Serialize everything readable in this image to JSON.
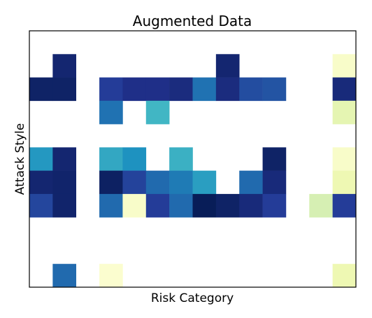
{
  "chart_data": {
    "type": "heatmap",
    "title": "Augmented Data",
    "xlabel": "Risk Category",
    "ylabel": "Attack Style",
    "colormap": "YlGnBu",
    "vlim": [
      0,
      1
    ],
    "x": [
      null,
      null,
      null,
      null,
      null,
      null,
      null,
      null,
      null,
      null,
      null,
      null,
      null,
      null
    ],
    "y": [
      null,
      null,
      null,
      null,
      null,
      null,
      null,
      null,
      null,
      null,
      null
    ],
    "values": [
      [
        null,
        null,
        null,
        null,
        null,
        null,
        null,
        null,
        null,
        null,
        null,
        null,
        null,
        null
      ],
      [
        null,
        0.95,
        null,
        null,
        null,
        null,
        null,
        null,
        0.95,
        null,
        null,
        null,
        null,
        0.05
      ],
      [
        0.97,
        0.97,
        null,
        0.85,
        0.9,
        0.9,
        0.92,
        0.7,
        0.92,
        0.8,
        0.78,
        null,
        null,
        0.93
      ],
      [
        null,
        null,
        null,
        0.7,
        null,
        0.5,
        null,
        null,
        null,
        null,
        null,
        null,
        null,
        0.15
      ],
      [
        null,
        null,
        null,
        null,
        null,
        null,
        null,
        null,
        null,
        null,
        null,
        null,
        null,
        null
      ],
      [
        0.6,
        0.95,
        null,
        0.55,
        0.62,
        null,
        0.52,
        null,
        null,
        null,
        0.97,
        null,
        null,
        0.05
      ],
      [
        0.95,
        0.96,
        null,
        0.98,
        0.83,
        0.72,
        0.68,
        0.58,
        null,
        0.72,
        0.93,
        null,
        null,
        0.12
      ],
      [
        0.82,
        0.96,
        null,
        0.72,
        0.05,
        0.85,
        0.72,
        1.0,
        0.97,
        0.93,
        0.85,
        null,
        0.2,
        0.85
      ],
      [
        null,
        null,
        null,
        null,
        null,
        null,
        null,
        null,
        null,
        null,
        null,
        null,
        null,
        null
      ],
      [
        null,
        null,
        null,
        null,
        null,
        null,
        null,
        null,
        null,
        null,
        null,
        null,
        null,
        null
      ],
      [
        null,
        0.72,
        null,
        0.03,
        null,
        null,
        null,
        null,
        null,
        null,
        null,
        null,
        null,
        0.12
      ]
    ]
  }
}
